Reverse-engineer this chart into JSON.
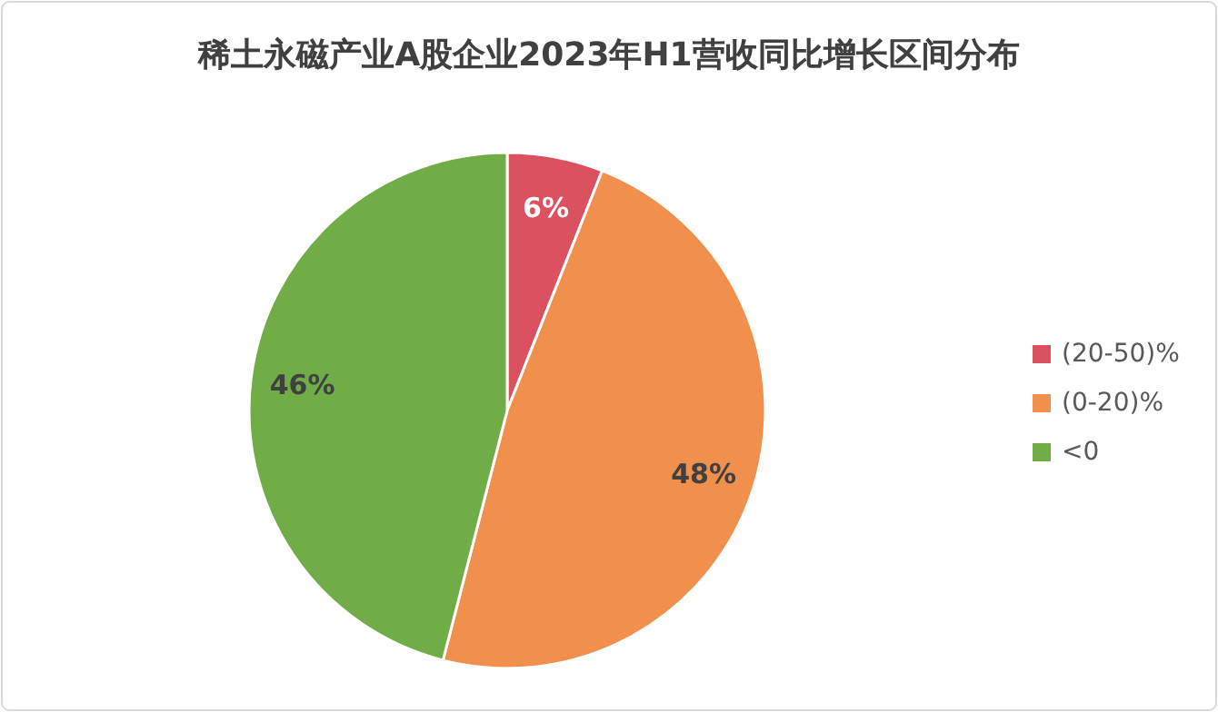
{
  "chart_data": {
    "type": "pie",
    "title": "稀土永磁产业A股企业2023年H1营收同比增长区间分布",
    "categories": [
      "(20-50)%",
      "(0-20)%",
      "<0"
    ],
    "values": [
      6,
      48,
      46
    ],
    "colors": [
      "#dc5160",
      "#f0904c",
      "#70ad47"
    ],
    "value_labels": [
      "6%",
      "48%",
      "46%"
    ],
    "legend": "right"
  }
}
